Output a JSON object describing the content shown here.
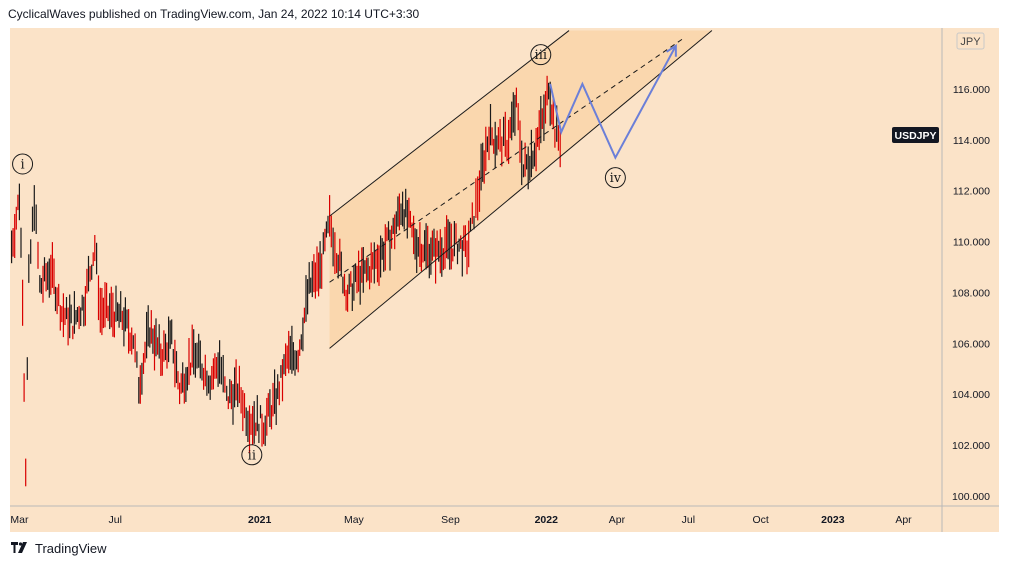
{
  "header": {
    "text": "CyclicalWaves published on TradingView.com, Jan 24, 2022 10:14 UTC+3:30"
  },
  "footer": {
    "brand": "TradingView",
    "logo_icon": "tradingview-logo-icon"
  },
  "colors": {
    "plot_background": "#fbe3c8",
    "channel_fill": "#fad3a6",
    "candle": "#d90000",
    "projection": "#6b7fd8",
    "symbol_badge": "#131722"
  },
  "chart_data": {
    "type": "line",
    "title": "",
    "symbol_badge": "USDJPY",
    "currency_badge": "JPY",
    "xlabel": "",
    "ylabel": "",
    "x_ticks": [
      "Mar",
      "Jul",
      "2021",
      "May",
      "Sep",
      "2022",
      "Apr",
      "Jul",
      "Oct",
      "2023",
      "Apr"
    ],
    "y_ticks": [
      "100.000",
      "102.000",
      "104.000",
      "106.000",
      "108.000",
      "110.000",
      "112.000",
      "114.000",
      "116.000"
    ],
    "ylim": [
      99.6,
      118.4
    ],
    "xlim": [
      "2020-02-18",
      "2023-05-20"
    ],
    "grid": false,
    "series": [
      {
        "values_label": "price",
        "points": [
          [
            "2020-02-20",
            109.8
          ],
          [
            "2020-03-01",
            111.8
          ],
          [
            "2020-03-05",
            108.0
          ],
          [
            "2020-03-09",
            101.2
          ],
          [
            "2020-03-13",
            108.5
          ],
          [
            "2020-03-20",
            111.7
          ],
          [
            "2020-03-27",
            108.2
          ],
          [
            "2020-04-10",
            108.9
          ],
          [
            "2020-04-24",
            107.2
          ],
          [
            "2020-05-08",
            106.8
          ],
          [
            "2020-05-22",
            107.6
          ],
          [
            "2020-06-05",
            109.8
          ],
          [
            "2020-06-12",
            107.3
          ],
          [
            "2020-06-26",
            107.2
          ],
          [
            "2020-07-10",
            107.0
          ],
          [
            "2020-07-24",
            106.2
          ],
          [
            "2020-07-31",
            104.4
          ],
          [
            "2020-08-14",
            106.6
          ],
          [
            "2020-08-28",
            105.5
          ],
          [
            "2020-09-11",
            106.1
          ],
          [
            "2020-09-21",
            104.2
          ],
          [
            "2020-10-09",
            105.6
          ],
          [
            "2020-10-30",
            104.6
          ],
          [
            "2020-11-11",
            105.3
          ],
          [
            "2020-11-20",
            103.8
          ],
          [
            "2020-12-04",
            104.2
          ],
          [
            "2020-12-17",
            103.1
          ],
          [
            "2021-01-06",
            102.8
          ],
          [
            "2021-01-22",
            103.8
          ],
          [
            "2021-02-05",
            105.4
          ],
          [
            "2021-02-19",
            105.6
          ],
          [
            "2021-03-05",
            108.2
          ],
          [
            "2021-03-19",
            108.9
          ],
          [
            "2021-03-31",
            110.7
          ],
          [
            "2021-04-09",
            109.6
          ],
          [
            "2021-04-23",
            107.9
          ],
          [
            "2021-05-07",
            108.6
          ],
          [
            "2021-05-21",
            108.9
          ],
          [
            "2021-06-04",
            109.5
          ],
          [
            "2021-06-18",
            110.2
          ],
          [
            "2021-07-02",
            111.5
          ],
          [
            "2021-07-16",
            110.1
          ],
          [
            "2021-07-30",
            109.7
          ],
          [
            "2021-08-13",
            109.6
          ],
          [
            "2021-08-27",
            109.8
          ],
          [
            "2021-09-10",
            109.9
          ],
          [
            "2021-09-22",
            109.6
          ],
          [
            "2021-10-01",
            111.1
          ],
          [
            "2021-10-08",
            112.2
          ],
          [
            "2021-10-20",
            114.3
          ],
          [
            "2021-11-01",
            113.9
          ],
          [
            "2021-11-12",
            113.9
          ],
          [
            "2021-11-24",
            115.3
          ],
          [
            "2021-12-03",
            112.8
          ],
          [
            "2021-12-17",
            113.7
          ],
          [
            "2021-12-31",
            115.1
          ],
          [
            "2022-01-04",
            116.3
          ],
          [
            "2022-01-12",
            114.4
          ],
          [
            "2022-01-21",
            113.8
          ]
        ]
      },
      {
        "name": "",
        "values_label": "projection",
        "points": [
          [
            "2022-01-06",
            116.2
          ],
          [
            "2022-01-20",
            114.3
          ],
          [
            "2022-02-16",
            116.2
          ],
          [
            "2022-03-30",
            113.3
          ],
          [
            "2022-06-15",
            117.7
          ]
        ]
      }
    ],
    "channel": {
      "upper": [
        [
          "2021-03-31",
          111.0
        ],
        [
          "2022-01-30",
          118.3
        ]
      ],
      "lower": [
        [
          "2021-03-31",
          105.8
        ],
        [
          "2022-07-31",
          118.3
        ]
      ],
      "midline": [
        [
          "2021-03-31",
          108.4
        ],
        [
          "2022-06-25",
          118.0
        ]
      ]
    },
    "wave_labels": [
      {
        "label": "i",
        "date": "2020-03-05",
        "value": 112.5,
        "anchor": "above"
      },
      {
        "label": "ii",
        "date": "2020-12-22",
        "value": 102.4,
        "anchor": "below"
      },
      {
        "label": "iii",
        "date": "2021-12-25",
        "value": 116.8,
        "anchor": "above"
      },
      {
        "label": "iv",
        "date": "2022-03-30",
        "value": 113.3,
        "anchor": "below"
      }
    ]
  }
}
